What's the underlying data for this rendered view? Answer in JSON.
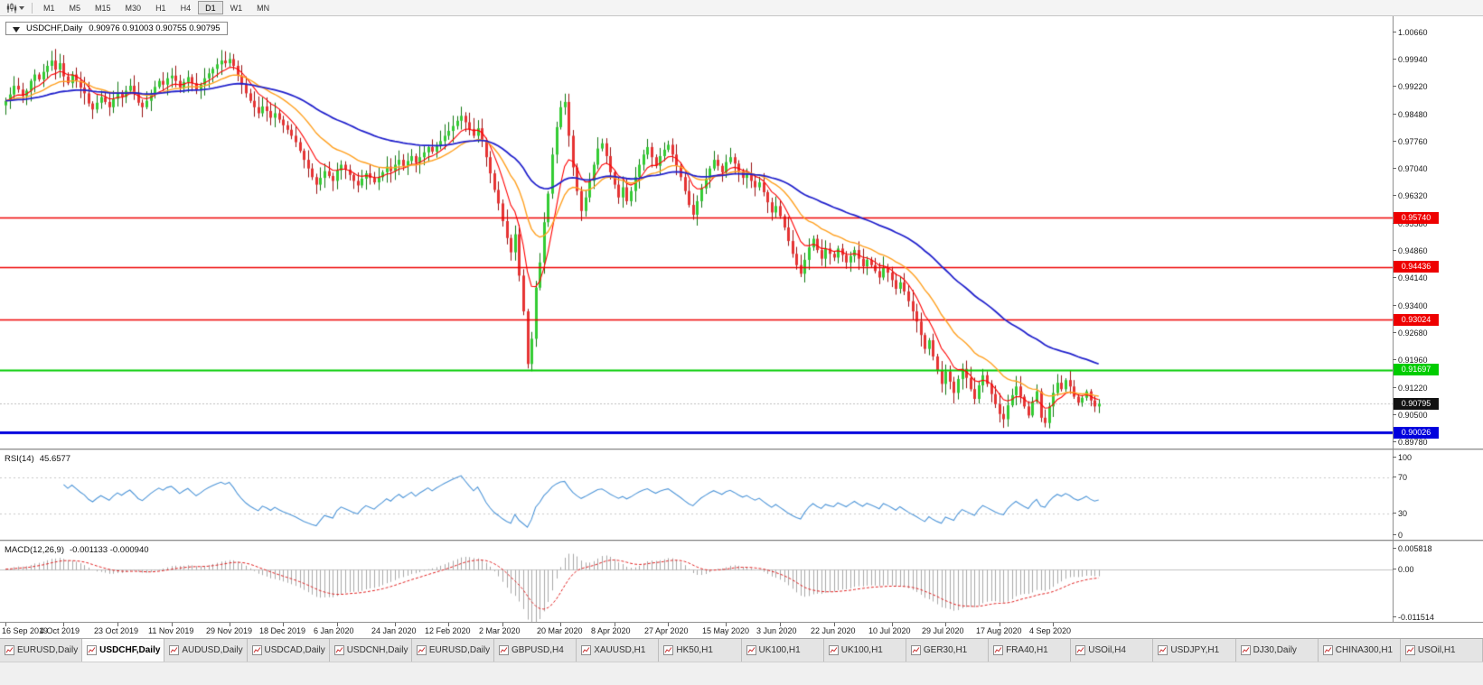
{
  "toolbar": {
    "timeframes": [
      "M1",
      "M5",
      "M15",
      "M30",
      "H1",
      "H4",
      "D1",
      "W1",
      "MN"
    ],
    "active_timeframe": "D1",
    "icons": [
      "candlestick-chart-icon",
      "dropdown-caret-icon"
    ]
  },
  "chart": {
    "symbol_period": "USDCHF,Daily",
    "ohlc_text": "0.90976 0.91003 0.90755 0.90795",
    "open": "0.90976",
    "high": "0.91003",
    "low": "0.90755",
    "close": "0.90795",
    "price_scale": [
      "1.00660",
      "0.99940",
      "0.99220",
      "0.98480",
      "0.97760",
      "0.97040",
      "0.96320",
      "0.95580",
      "0.94860",
      "0.94140",
      "0.93400",
      "0.92680",
      "0.91960",
      "0.91220",
      "0.90500",
      "0.89780"
    ],
    "levels": [
      {
        "label": "0.95740",
        "value": 0.9574,
        "color": "#ee0000",
        "width": 1.5
      },
      {
        "label": "0.94436",
        "value": 0.94436,
        "color": "#ee0000",
        "width": 1.5
      },
      {
        "label": "0.93024",
        "value": 0.93024,
        "color": "#ee0000",
        "width": 1.5
      },
      {
        "label": "0.91697",
        "value": 0.91697,
        "color": "#00cc00",
        "width": 2
      },
      {
        "label": "0.90026",
        "value": 0.90026,
        "color": "#0000dd",
        "width": 3
      }
    ],
    "current_price": {
      "label": "0.90795",
      "value": 0.90795,
      "bg": "#111111"
    }
  },
  "rsi": {
    "label": "RSI(14)",
    "value": "45.6577",
    "period": 14,
    "line_color": "#4f96d8",
    "guide_levels": [
      70,
      30
    ],
    "scale": [
      {
        "text": "100",
        "v": 100
      },
      {
        "text": "70",
        "v": 70
      },
      {
        "text": "30",
        "v": 30
      },
      {
        "text": "0",
        "v": 0
      }
    ]
  },
  "macd": {
    "label": "MACD(12,26,9)",
    "values_text": "-0.001133 -0.000940",
    "fast": 12,
    "slow": 26,
    "signal": 9,
    "bar_color": "#a8a8a8",
    "signal_color": "#e02020",
    "scale": [
      {
        "text": "0.005818",
        "v": 0.005818
      },
      {
        "text": "0.00",
        "v": 0
      },
      {
        "text": "-0.011514",
        "v": -0.011514
      }
    ]
  },
  "tabs": [
    {
      "label": "EURUSD,Daily",
      "active": false
    },
    {
      "label": "USDCHF,Daily",
      "active": true
    },
    {
      "label": "AUDUSD,Daily",
      "active": false
    },
    {
      "label": "USDCAD,Daily",
      "active": false
    },
    {
      "label": "USDCNH,Daily",
      "active": false
    },
    {
      "label": "EURUSD,Daily",
      "active": false
    },
    {
      "label": "GBPUSD,H4",
      "active": false
    },
    {
      "label": "XAUUSD,H1",
      "active": false
    },
    {
      "label": "HK50,H1",
      "active": false
    },
    {
      "label": "UK100,H1",
      "active": false
    },
    {
      "label": "UK100,H1",
      "active": false
    },
    {
      "label": "GER30,H1",
      "active": false
    },
    {
      "label": "FRA40,H1",
      "active": false
    },
    {
      "label": "USOil,H4",
      "active": false
    },
    {
      "label": "USDJPY,H1",
      "active": false
    },
    {
      "label": "DJ30,Daily",
      "active": false
    },
    {
      "label": "CHINA300,H1",
      "active": false
    },
    {
      "label": "USOil,H1",
      "active": false
    }
  ],
  "chart_data": {
    "type": "candlestick",
    "symbol": "USDCHF",
    "period": "Daily",
    "y_range": [
      0.896,
      1.011
    ],
    "ma_periods": {
      "fast": 8,
      "mid": 20,
      "slow": 55
    },
    "ma_colors": {
      "fast": "#ff0000",
      "mid": "#ffa020",
      "slow": "#2222cc"
    },
    "candle_colors": {
      "up_fill": "#33cc33",
      "up_stroke": "#117711",
      "down_fill": "#e63333",
      "down_stroke": "#991111"
    },
    "date_labels": [
      {
        "text": "16 Sep 2019",
        "i": 0
      },
      {
        "text": "4 Oct 2019",
        "i": 14
      },
      {
        "text": "23 Oct 2019",
        "i": 27
      },
      {
        "text": "11 Nov 2019",
        "i": 40
      },
      {
        "text": "29 Nov 2019",
        "i": 54
      },
      {
        "text": "18 Dec 2019",
        "i": 67
      },
      {
        "text": "6 Jan 2020",
        "i": 80
      },
      {
        "text": "24 Jan 2020",
        "i": 94
      },
      {
        "text": "12 Feb 2020",
        "i": 107
      },
      {
        "text": "2 Mar 2020",
        "i": 120
      },
      {
        "text": "20 Mar 2020",
        "i": 134
      },
      {
        "text": "8 Apr 2020",
        "i": 147
      },
      {
        "text": "27 Apr 2020",
        "i": 160
      },
      {
        "text": "15 May 2020",
        "i": 174
      },
      {
        "text": "3 Jun 2020",
        "i": 187
      },
      {
        "text": "22 Jun 2020",
        "i": 200
      },
      {
        "text": "10 Jul 2020",
        "i": 214
      },
      {
        "text": "29 Jul 2020",
        "i": 227
      },
      {
        "text": "17 Aug 2020",
        "i": 240
      },
      {
        "text": "4 Sep 2020",
        "i": 253
      }
    ],
    "closes": [
      0.9885,
      0.9902,
      0.9925,
      0.9915,
      0.9898,
      0.9912,
      0.9938,
      0.9955,
      0.9942,
      0.9962,
      0.9978,
      0.9992,
      0.9968,
      0.9985,
      0.995,
      0.9932,
      0.9955,
      0.9938,
      0.992,
      0.9905,
      0.9878,
      0.9862,
      0.988,
      0.9895,
      0.9882,
      0.9868,
      0.989,
      0.9908,
      0.9895,
      0.9912,
      0.9925,
      0.9905,
      0.988,
      0.9868,
      0.9885,
      0.9905,
      0.9922,
      0.9938,
      0.9928,
      0.9945,
      0.9952,
      0.9938,
      0.992,
      0.9935,
      0.9948,
      0.9932,
      0.9915,
      0.9928,
      0.9945,
      0.9958,
      0.997,
      0.9982,
      0.9992,
      0.9985,
      0.9996,
      0.9978,
      0.9952,
      0.9928,
      0.9905,
      0.9885,
      0.9868,
      0.9852,
      0.987,
      0.9858,
      0.984,
      0.9852,
      0.9835,
      0.982,
      0.9808,
      0.9792,
      0.9775,
      0.9752,
      0.9728,
      0.9705,
      0.9682,
      0.9662,
      0.968,
      0.9698,
      0.9685,
      0.9672,
      0.97,
      0.9715,
      0.9702,
      0.9688,
      0.9672,
      0.966,
      0.9678,
      0.9692,
      0.968,
      0.9668,
      0.9682,
      0.9695,
      0.971,
      0.9698,
      0.9715,
      0.9728,
      0.9712,
      0.9725,
      0.9738,
      0.972,
      0.9735,
      0.9748,
      0.9762,
      0.975,
      0.9765,
      0.9778,
      0.9792,
      0.9805,
      0.9818,
      0.9832,
      0.9845,
      0.9828,
      0.981,
      0.9792,
      0.9812,
      0.978,
      0.9735,
      0.9692,
      0.9648,
      0.9612,
      0.9565,
      0.952,
      0.9482,
      0.953,
      0.942,
      0.9325,
      0.9185,
      0.9252,
      0.9388,
      0.9455,
      0.9562,
      0.9638,
      0.9742,
      0.9815,
      0.9868,
      0.9882,
      0.9792,
      0.9708,
      0.9645,
      0.9592,
      0.9628,
      0.9672,
      0.9715,
      0.9758,
      0.9772,
      0.9738,
      0.9695,
      0.9662,
      0.9628,
      0.9655,
      0.9618,
      0.9645,
      0.9682,
      0.9715,
      0.9742,
      0.9762,
      0.9735,
      0.9712,
      0.9738,
      0.9755,
      0.9768,
      0.9742,
      0.9712,
      0.9682,
      0.9645,
      0.9608,
      0.9582,
      0.9618,
      0.9652,
      0.9678,
      0.9705,
      0.9728,
      0.9712,
      0.9695,
      0.9722,
      0.9735,
      0.9718,
      0.9698,
      0.968,
      0.9692,
      0.9672,
      0.9655,
      0.9668,
      0.9642,
      0.9615,
      0.9588,
      0.9605,
      0.9578,
      0.9548,
      0.9512,
      0.9478,
      0.9448,
      0.9425,
      0.9462,
      0.9495,
      0.9518,
      0.9488,
      0.9465,
      0.9492,
      0.9478,
      0.9468,
      0.9492,
      0.9475,
      0.9455,
      0.9472,
      0.9488,
      0.9465,
      0.9445,
      0.9462,
      0.9448,
      0.9432,
      0.9415,
      0.9442,
      0.9428,
      0.9408,
      0.9385,
      0.9402,
      0.9378,
      0.9352,
      0.9325,
      0.9298,
      0.9262,
      0.9225,
      0.9248,
      0.9205,
      0.9168,
      0.9132,
      0.9165,
      0.9138,
      0.9108,
      0.9145,
      0.9172,
      0.9148,
      0.9118,
      0.9092,
      0.9128,
      0.9155,
      0.9132,
      0.9105,
      0.9078,
      0.9052,
      0.9038,
      0.9075,
      0.9102,
      0.9125,
      0.9098,
      0.9072,
      0.9048,
      0.9085,
      0.9112,
      0.9042,
      0.9028,
      0.9072,
      0.9108,
      0.9135,
      0.9118,
      0.9142,
      0.9125,
      0.9098,
      0.9082,
      0.9095,
      0.9112,
      0.9088,
      0.9072,
      0.90795
    ]
  }
}
